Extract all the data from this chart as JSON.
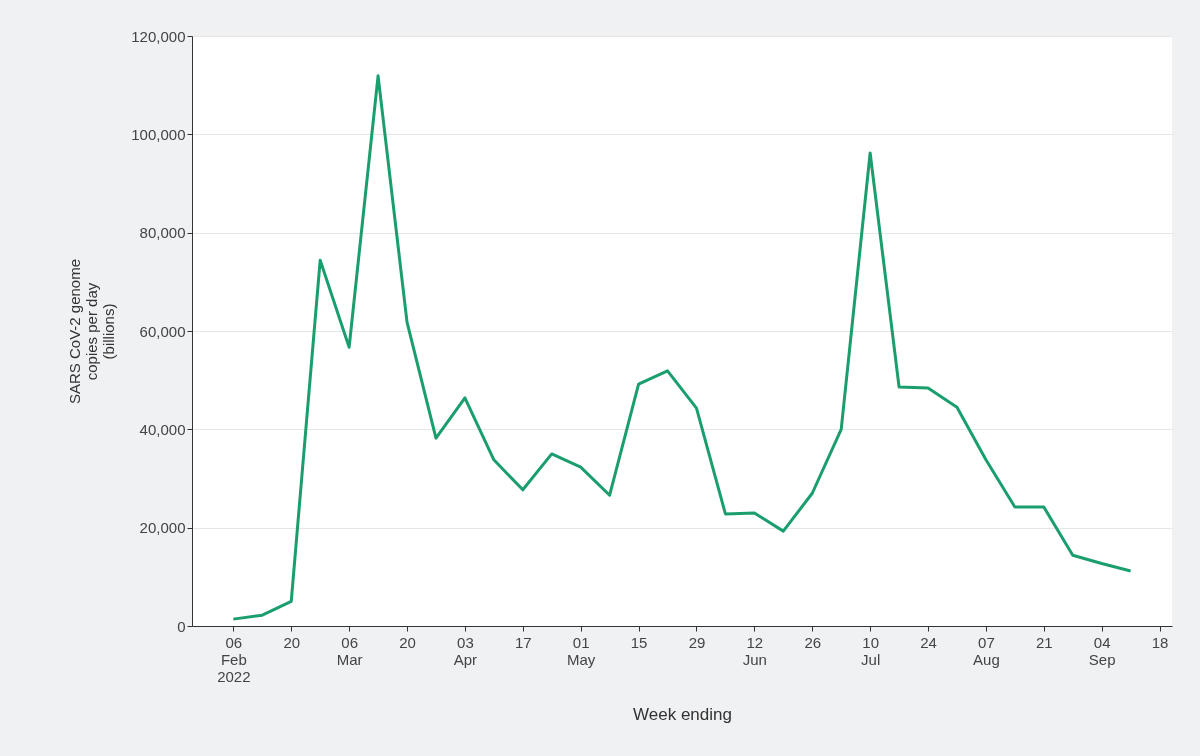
{
  "chart_data": {
    "type": "line",
    "xlabel": "Week ending",
    "ylabel": "SARS CoV-2 genome\ncopies per day\n(billions)",
    "x": [
      "2022-02-06",
      "2022-02-13",
      "2022-02-20",
      "2022-02-27",
      "2022-03-06",
      "2022-03-13",
      "2022-03-20",
      "2022-03-27",
      "2022-04-03",
      "2022-04-10",
      "2022-04-17",
      "2022-04-24",
      "2022-05-01",
      "2022-05-08",
      "2022-05-15",
      "2022-05-22",
      "2022-05-29",
      "2022-06-05",
      "2022-06-12",
      "2022-06-19",
      "2022-06-26",
      "2022-07-03",
      "2022-07-10",
      "2022-07-17",
      "2022-07-24",
      "2022-07-31",
      "2022-08-07",
      "2022-08-14",
      "2022-08-21",
      "2022-08-28",
      "2022-09-04",
      "2022-09-11"
    ],
    "series": [
      {
        "color": "#1a9e6e",
        "values": [
          1400,
          2200,
          5000,
          74400,
          56700,
          111900,
          61800,
          38200,
          46400,
          33800,
          27700,
          35000,
          32300,
          26600,
          49200,
          51900,
          44300,
          22800,
          23000,
          19300,
          27000,
          40000,
          96200,
          48600,
          48400,
          44500,
          33800,
          24200,
          24200,
          14400,
          12700,
          11200
        ]
      }
    ],
    "xlim": [
      "2022-01-27",
      "2022-09-21"
    ],
    "xticks": [
      {
        "value": "2022-02-06",
        "label": "06\nFeb\n2022"
      },
      {
        "value": "2022-02-20",
        "label": "20"
      },
      {
        "value": "2022-03-06",
        "label": "06\nMar"
      },
      {
        "value": "2022-03-20",
        "label": "20"
      },
      {
        "value": "2022-04-03",
        "label": "03\nApr"
      },
      {
        "value": "2022-04-17",
        "label": "17"
      },
      {
        "value": "2022-05-01",
        "label": "01\nMay"
      },
      {
        "value": "2022-05-15",
        "label": "15"
      },
      {
        "value": "2022-05-29",
        "label": "29"
      },
      {
        "value": "2022-06-12",
        "label": "12\nJun"
      },
      {
        "value": "2022-06-26",
        "label": "26"
      },
      {
        "value": "2022-07-10",
        "label": "10\nJul"
      },
      {
        "value": "2022-07-24",
        "label": "24"
      },
      {
        "value": "2022-08-07",
        "label": "07\nAug"
      },
      {
        "value": "2022-08-21",
        "label": "21"
      },
      {
        "value": "2022-09-04",
        "label": "04\nSep"
      },
      {
        "value": "2022-09-18",
        "label": "18"
      }
    ],
    "ylim": [
      0,
      120000
    ],
    "yticks": [
      {
        "value": 0,
        "label": "0"
      },
      {
        "value": 20000,
        "label": "20,000"
      },
      {
        "value": 40000,
        "label": "40,000"
      },
      {
        "value": 60000,
        "label": "60,000"
      },
      {
        "value": 80000,
        "label": "80,000"
      },
      {
        "value": 100000,
        "label": "100,000"
      },
      {
        "value": 120000,
        "label": "120,000"
      }
    ],
    "grid": "y",
    "marker": "none",
    "line_style": "solid"
  }
}
